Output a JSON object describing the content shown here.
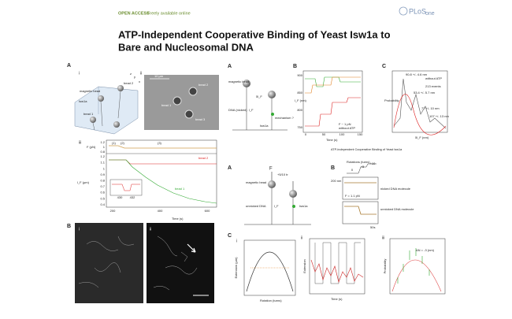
{
  "header": {
    "access": "OPEN ACCESS",
    "note": "Freely available online",
    "logo": "PLoS",
    "logo_suffix": "one"
  },
  "title": {
    "line1": "ATP-Independent Cooperative Binding of Yeast Isw1a to",
    "line2": "Bare and Nucleosomal DNA"
  },
  "figure1": {
    "panel_a": {
      "letter": "A",
      "i": {
        "label": "i",
        "bead": "magnetic bead",
        "bead_2": "bead 2",
        "protein": "Isw1a",
        "bead_1": "bead 1",
        "x": "x",
        "y": "y",
        "z": "z"
      },
      "ii": {
        "label": "ii",
        "scale": "10 µm",
        "bead_1": "bead 1",
        "bead_2": "bead 2",
        "bead_3": "bead 3"
      },
      "iii": {
        "label": "iii",
        "force_axis": "F (pN)",
        "force_ticks": [
          1.2,
          1,
          0.8
        ],
        "length_axis": "l_F (µm)",
        "length_ticks": [
          1.2,
          1.1,
          1,
          0.9,
          0.8,
          0.7,
          0.6,
          0.5,
          0.4
        ],
        "time_axis": "Time (s)",
        "time_ticks": [
          200,
          400,
          600
        ],
        "phases": [
          "(1)",
          "(2)",
          "(3)"
        ],
        "trace_2": "bead 2",
        "trace_1": "bead 1",
        "inset_ticks": [
          430,
          432
        ]
      }
    },
    "panel_b": {
      "letter": "B",
      "i": "i",
      "ii": "ii"
    }
  },
  "figure2": {
    "panel_a": {
      "letter": "A",
      "bead": "magnetic bead",
      "dna": "DNA (nicked)",
      "protein": "Isw1a",
      "length": "l_F",
      "step": "δl_F",
      "question": "mechanism ?"
    },
    "panel_b": {
      "letter": "B",
      "y_axis": "l_F (nm)",
      "y_ticks": [
        900,
        850,
        800,
        750
      ],
      "x_axis": "Time (s)",
      "x_ticks": [
        0,
        50,
        100,
        150
      ],
      "note": "without ATP",
      "force": "F ~ 1 pN"
    },
    "panel_c": {
      "letter": "C",
      "y_axis": "Probability",
      "x_axis": "δl_F (nm)",
      "peaks": [
        "90.8 +/- 4.6 nm",
        "53.4 +/- 5.7 nm",
        "77 +/- 10 nm",
        "107 +/- 13 nm"
      ],
      "note": "without ATP",
      "events": "213 events"
    },
    "caption": "ATP-Independent Cooperative Binding of Yeast Isw1a"
  },
  "figure3": {
    "panel_a": {
      "letter": "A",
      "force": "F",
      "rotation": "+5/10 tr",
      "bead": "magnetic bead",
      "dna": "unnicked DNA",
      "length": "l_F",
      "protein": "Isw1a"
    },
    "panel_b": {
      "letter": "B",
      "turn_labels": [
        "0",
        "+5",
        "+10"
      ],
      "turns_axis": "Rotations (turns)",
      "scale": "200 nm",
      "nicked": "nicked DNA molecule",
      "unnicked": "unnicked DNA molecule",
      "force": "F = 1.1 pN",
      "time_scale": "50s"
    },
    "panel_c": {
      "letter": "C",
      "i": {
        "label": "i",
        "y_axis": "Extension (µm)",
        "x_axis": "Rotation (turns)"
      },
      "ii": {
        "label": "ii",
        "y_axis": "Extension",
        "x_axis": "Time (s)"
      },
      "iii": {
        "label": "iii",
        "y_axis": "Probability",
        "note": "ΔN = -3 (nm)"
      }
    }
  }
}
